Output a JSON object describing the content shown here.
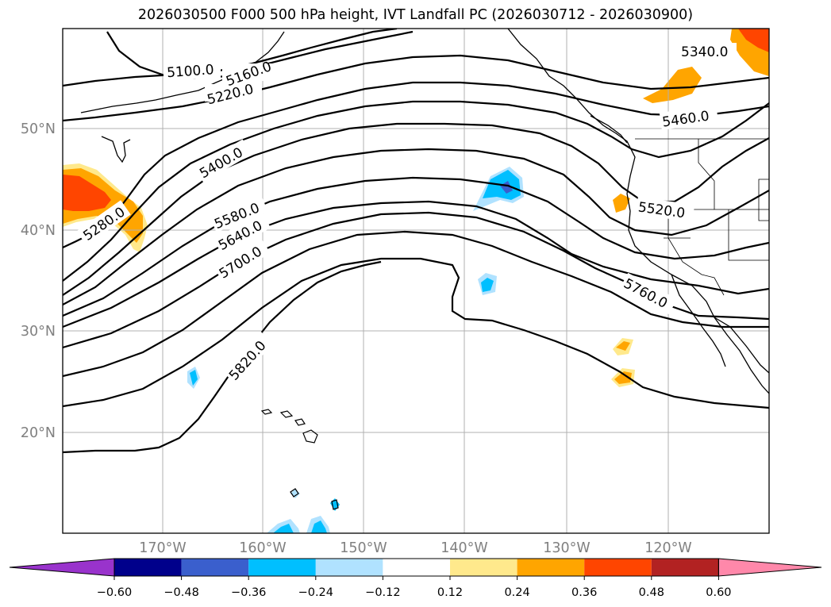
{
  "title": "2026030500 F000 500 hPa height, IVT Landfall PC (2026030712 - 2026030900)",
  "latitude_labels": [
    "50°N",
    "40°N",
    "30°N",
    "20°N"
  ],
  "longitude_labels": [
    "170°W",
    "160°W",
    "150°W",
    "140°W",
    "130°W",
    "120°W"
  ],
  "height_contour_labels": [
    "5100.0",
    "5160.0",
    "5220.0",
    "5280.0",
    "5340.0",
    "5400.0",
    "5460.0",
    "5520.0",
    "5580.0",
    "5640.0",
    "5700.0",
    "5760.0",
    "5820.0"
  ],
  "colorbar": {
    "tick_labels": [
      "−0.60",
      "−0.48",
      "−0.36",
      "−0.24",
      "−0.12",
      "0.12",
      "0.24",
      "0.36",
      "0.48",
      "0.60"
    ],
    "colors": [
      "#9933cc",
      "#00008b",
      "#3a5fcd",
      "#00bfff",
      "#b0e2ff",
      "#ffffff",
      "#ffe98c",
      "#ffa500",
      "#ff4500",
      "#b22222",
      "#ff88aa"
    ]
  },
  "field_colors": {
    "positive_light": "#ffe98c",
    "positive_mid": "#ffa500",
    "positive_high": "#ff4500",
    "negative_light": "#b0e2ff",
    "negative_mid": "#00bfff",
    "negative_high": "#3a5fcd"
  }
}
